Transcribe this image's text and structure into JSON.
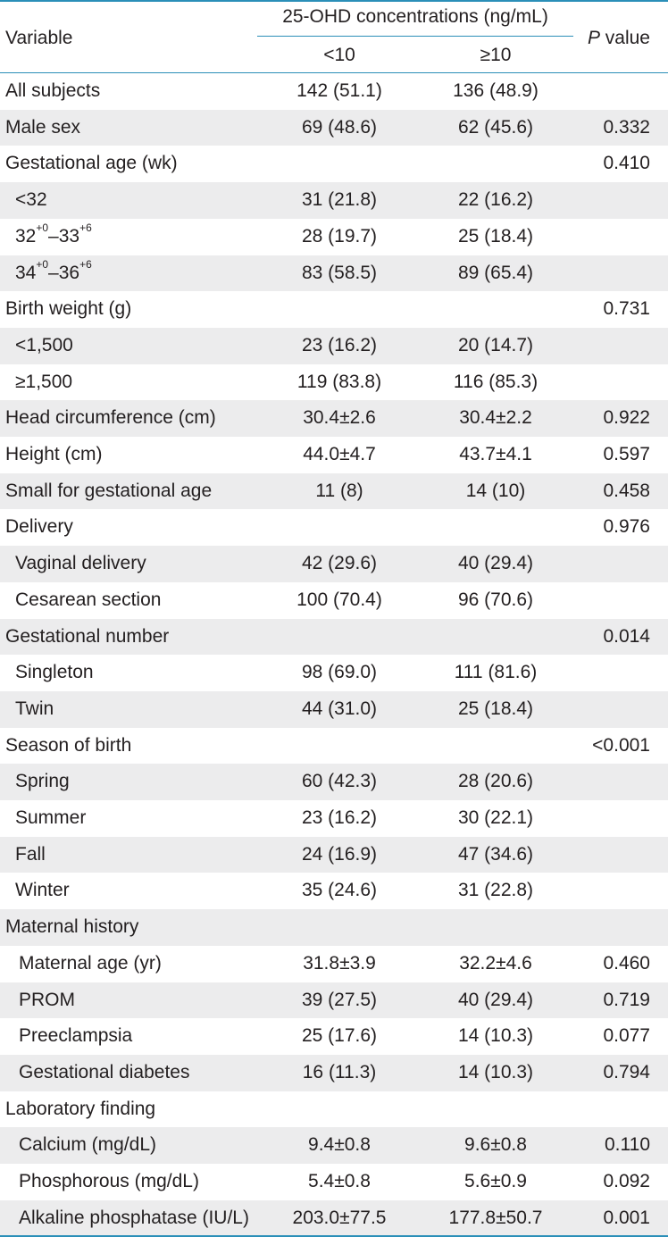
{
  "header": {
    "variable_label": "Variable",
    "group_label": "25-OHD concentrations (ng/mL)",
    "col_a": "<10",
    "col_b": "≥10",
    "p_italic": "P",
    "p_rest": " value"
  },
  "rows": [
    {
      "label": "All subjects",
      "a": "142 (51.1)",
      "b": "136 (48.9)",
      "p": ""
    },
    {
      "label": "Male sex",
      "a": "69 (48.6)",
      "b": "62 (45.6)",
      "p": "0.332"
    },
    {
      "label": "Gestational age (wk)",
      "a": "",
      "b": "",
      "p": "0.410"
    },
    {
      "label": "<32",
      "a": "31 (21.8)",
      "b": "22 (16.2)",
      "p": ""
    },
    {
      "label": "32+0–33+6",
      "a": "28 (19.7)",
      "b": "25 (18.4)",
      "p": ""
    },
    {
      "label": "34+0–36+6",
      "a": "83 (58.5)",
      "b": "89 (65.4)",
      "p": ""
    },
    {
      "label": "Birth weight (g)",
      "a": "",
      "b": "",
      "p": "0.731"
    },
    {
      "label": "<1,500",
      "a": "23 (16.2)",
      "b": "20 (14.7)",
      "p": ""
    },
    {
      "label": "≥1,500",
      "a": "119 (83.8)",
      "b": "116 (85.3)",
      "p": ""
    },
    {
      "label": "Head circumference (cm)",
      "a": "30.4±2.6",
      "b": "30.4±2.2",
      "p": "0.922"
    },
    {
      "label": "Height (cm)",
      "a": "44.0±4.7",
      "b": "43.7±4.1",
      "p": "0.597"
    },
    {
      "label": "Small for gestational age",
      "a": "11 (8)",
      "b": "14 (10)",
      "p": "0.458"
    },
    {
      "label": "Delivery",
      "a": "",
      "b": "",
      "p": "0.976"
    },
    {
      "label": "Vaginal delivery",
      "a": "42 (29.6)",
      "b": "40 (29.4)",
      "p": ""
    },
    {
      "label": "Cesarean section",
      "a": "100 (70.4)",
      "b": "96 (70.6)",
      "p": ""
    },
    {
      "label": "Gestational number",
      "a": "",
      "b": "",
      "p": "0.014"
    },
    {
      "label": "Singleton",
      "a": "98 (69.0)",
      "b": "111 (81.6)",
      "p": ""
    },
    {
      "label": "Twin",
      "a": "44 (31.0)",
      "b": "25 (18.4)",
      "p": ""
    },
    {
      "label": "Season of birth",
      "a": "",
      "b": "",
      "p": "<0.001"
    },
    {
      "label": "Spring",
      "a": "60 (42.3)",
      "b": "28 (20.6)",
      "p": ""
    },
    {
      "label": "Summer",
      "a": "23 (16.2)",
      "b": "30 (22.1)",
      "p": ""
    },
    {
      "label": "Fall",
      "a": "24 (16.9)",
      "b": "47 (34.6)",
      "p": ""
    },
    {
      "label": "Winter",
      "a": "35 (24.6)",
      "b": "31 (22.8)",
      "p": ""
    },
    {
      "label": "Maternal history",
      "a": "",
      "b": "",
      "p": ""
    },
    {
      "label": "Maternal age (yr)",
      "a": "31.8±3.9",
      "b": "32.2±4.6",
      "p": "0.460"
    },
    {
      "label": "PROM",
      "a": "39 (27.5)",
      "b": "40 (29.4)",
      "p": "0.719"
    },
    {
      "label": "Preeclampsia",
      "a": "25 (17.6)",
      "b": "14 (10.3)",
      "p": "0.077"
    },
    {
      "label": "Gestational diabetes",
      "a": "16 (11.3)",
      "b": "14 (10.3)",
      "p": "0.794"
    },
    {
      "label": "Laboratory finding",
      "a": "",
      "b": "",
      "p": ""
    },
    {
      "label": "Calcium (mg/dL)",
      "a": "9.4±0.8",
      "b": "9.6±0.8",
      "p": "0.110"
    },
    {
      "label": "Phosphorous (mg/dL)",
      "a": "5.4±0.8",
      "b": "5.6±0.9",
      "p": "0.092"
    },
    {
      "label": "Alkaline phosphatase (IU/L)",
      "a": "203.0±77.5",
      "b": "177.8±50.7",
      "p": "0.001"
    }
  ],
  "colors": {
    "rule": "#2b8fb8",
    "shade": "#ececed",
    "text": "#231f20"
  }
}
